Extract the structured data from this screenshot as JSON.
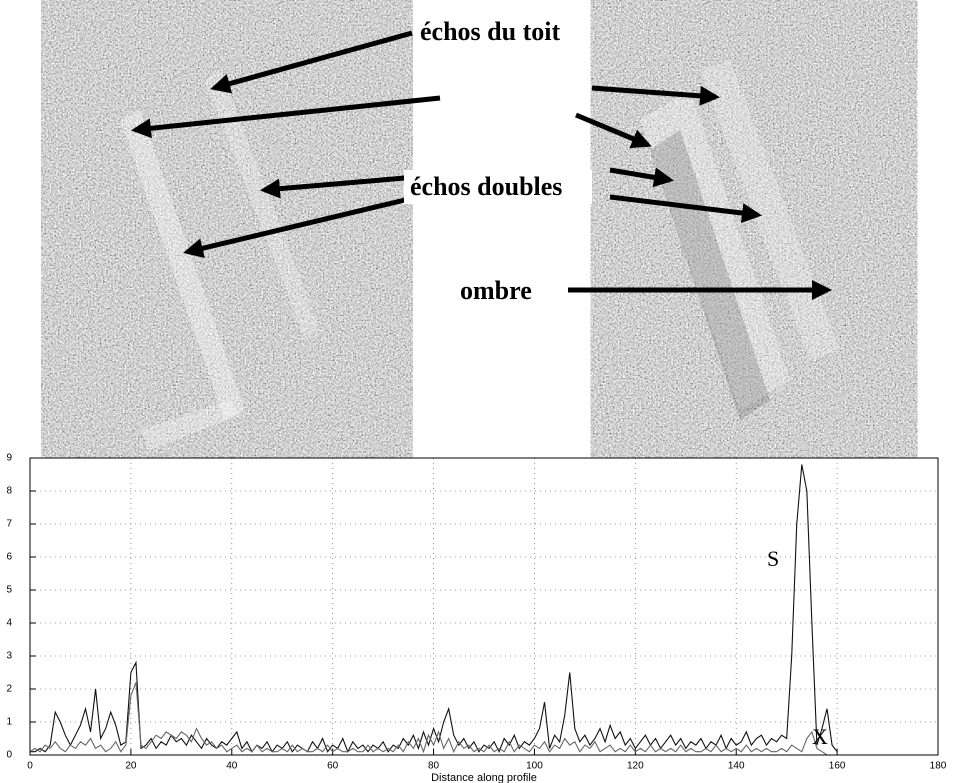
{
  "chart_data": {
    "type": "line",
    "x_label": "Distance along profile",
    "annotations": [
      "échos du toit",
      "échos doubles",
      "ombre",
      "S",
      "X"
    ],
    "x": [
      0,
      1,
      2,
      3,
      4,
      5,
      6,
      7,
      8,
      9,
      10,
      11,
      12,
      13,
      14,
      15,
      16,
      17,
      18,
      19,
      20,
      21,
      22,
      23,
      24,
      25,
      26,
      27,
      28,
      29,
      30,
      31,
      32,
      33,
      34,
      35,
      36,
      37,
      38,
      39,
      40,
      41,
      42,
      43,
      44,
      45,
      46,
      47,
      48,
      49,
      50,
      51,
      52,
      53,
      54,
      55,
      56,
      57,
      58,
      59,
      60,
      61,
      62,
      63,
      64,
      65,
      66,
      67,
      68,
      69,
      70,
      71,
      72,
      73,
      74,
      75,
      76,
      77,
      78,
      79,
      80,
      81,
      82,
      83,
      84,
      85,
      86,
      87,
      88,
      89,
      90,
      91,
      92,
      93,
      94,
      95,
      96,
      97,
      98,
      99,
      100,
      101,
      102,
      103,
      104,
      105,
      106,
      107,
      108,
      109,
      110,
      111,
      112,
      113,
      114,
      115,
      116,
      117,
      118,
      119,
      120,
      121,
      122,
      123,
      124,
      125,
      126,
      127,
      128,
      129,
      130,
      131,
      132,
      133,
      134,
      135,
      136,
      137,
      138,
      139,
      140,
      141,
      142,
      143,
      144,
      145,
      146,
      147,
      148,
      149,
      150,
      151,
      152,
      153,
      154,
      155,
      156,
      157,
      158,
      159,
      160
    ],
    "series": [
      {
        "name": "S",
        "color": "#111111",
        "values": [
          0.1,
          0.1,
          0.2,
          0.1,
          0.3,
          1.3,
          1.0,
          0.6,
          0.3,
          0.6,
          0.9,
          1.4,
          0.7,
          2.0,
          0.5,
          0.8,
          1.3,
          0.9,
          0.3,
          0.4,
          2.5,
          2.8,
          0.2,
          0.3,
          0.5,
          0.2,
          0.4,
          0.3,
          0.6,
          0.4,
          0.5,
          0.3,
          0.6,
          0.4,
          0.2,
          0.5,
          0.3,
          0.2,
          0.4,
          0.3,
          0.5,
          0.7,
          0.2,
          0.4,
          0.1,
          0.3,
          0.2,
          0.4,
          0.1,
          0.3,
          0.2,
          0.4,
          0.1,
          0.3,
          0.2,
          0.1,
          0.4,
          0.2,
          0.5,
          0.1,
          0.3,
          0.2,
          0.5,
          0.1,
          0.4,
          0.2,
          0.3,
          0.1,
          0.3,
          0.2,
          0.4,
          0.1,
          0.3,
          0.2,
          0.5,
          0.3,
          0.6,
          0.2,
          0.7,
          0.3,
          0.8,
          0.4,
          1.0,
          1.4,
          0.6,
          0.3,
          0.5,
          0.2,
          0.4,
          0.1,
          0.3,
          0.2,
          0.4,
          0.1,
          0.5,
          0.3,
          0.6,
          0.2,
          0.4,
          0.3,
          0.5,
          0.8,
          1.6,
          0.2,
          0.6,
          0.4,
          1.2,
          2.5,
          0.8,
          0.4,
          0.6,
          0.3,
          0.5,
          0.8,
          0.4,
          0.9,
          0.5,
          0.7,
          0.3,
          0.5,
          0.2,
          0.4,
          0.6,
          0.3,
          0.5,
          0.2,
          0.4,
          0.6,
          0.3,
          0.5,
          0.2,
          0.4,
          0.3,
          0.5,
          0.2,
          0.4,
          0.3,
          0.6,
          0.2,
          0.5,
          0.3,
          0.4,
          0.7,
          0.3,
          0.5,
          0.6,
          0.3,
          0.5,
          0.4,
          0.6,
          0.5,
          3.0,
          7.0,
          8.8,
          8.0,
          4.0,
          0.3,
          0.8,
          1.4,
          0.3,
          0.1
        ]
      },
      {
        "name": "X",
        "color": "#666666",
        "values": [
          0.1,
          0.2,
          0.1,
          0.3,
          0.2,
          0.4,
          0.2,
          0.1,
          0.3,
          0.2,
          0.4,
          0.3,
          0.5,
          0.2,
          0.3,
          0.1,
          0.2,
          0.4,
          0.1,
          0.3,
          1.8,
          2.2,
          0.3,
          0.2,
          0.4,
          0.6,
          0.5,
          0.7,
          0.6,
          0.5,
          0.7,
          0.6,
          0.4,
          0.8,
          0.5,
          0.3,
          0.4,
          0.2,
          0.3,
          0.1,
          0.2,
          0.3,
          0.1,
          0.2,
          0.1,
          0.3,
          0.1,
          0.2,
          0.1,
          0.1,
          0.2,
          0.1,
          0.3,
          0.1,
          0.2,
          0.1,
          0.1,
          0.2,
          0.1,
          0.3,
          0.1,
          0.2,
          0.1,
          0.1,
          0.2,
          0.1,
          0.1,
          0.3,
          0.1,
          0.2,
          0.1,
          0.2,
          0.1,
          0.3,
          0.1,
          0.4,
          0.2,
          0.5,
          0.1,
          0.6,
          0.3,
          0.7,
          0.2,
          0.5,
          0.1,
          0.4,
          0.2,
          0.3,
          0.1,
          0.2,
          0.1,
          0.3,
          0.1,
          0.2,
          0.1,
          0.4,
          0.1,
          0.3,
          0.2,
          0.1,
          0.3,
          0.2,
          0.4,
          0.1,
          0.3,
          0.2,
          0.5,
          0.3,
          0.4,
          0.1,
          0.3,
          0.2,
          0.4,
          0.1,
          0.2,
          0.3,
          0.1,
          0.2,
          0.1,
          0.3,
          0.1,
          0.2,
          0.1,
          0.3,
          0.1,
          0.2,
          0.1,
          0.2,
          0.1,
          0.3,
          0.1,
          0.2,
          0.1,
          0.1,
          0.2,
          0.1,
          0.3,
          0.1,
          0.2,
          0.1,
          0.2,
          0.1,
          0.3,
          0.1,
          0.2,
          0.1,
          0.2,
          0.1,
          0.1,
          0.2,
          0.1,
          0.3,
          0.2,
          0.1,
          0.5,
          0.7,
          0.2,
          0.1,
          0.0,
          0.0,
          0.0
        ]
      }
    ],
    "xlim": [
      0,
      180
    ],
    "xticks": [
      0,
      20,
      40,
      60,
      80,
      100,
      120,
      140,
      160,
      180
    ],
    "ylim": [
      0,
      9
    ],
    "yticks": [
      0,
      1,
      2,
      3,
      4,
      5,
      6,
      7,
      8,
      9
    ],
    "grid": true
  }
}
